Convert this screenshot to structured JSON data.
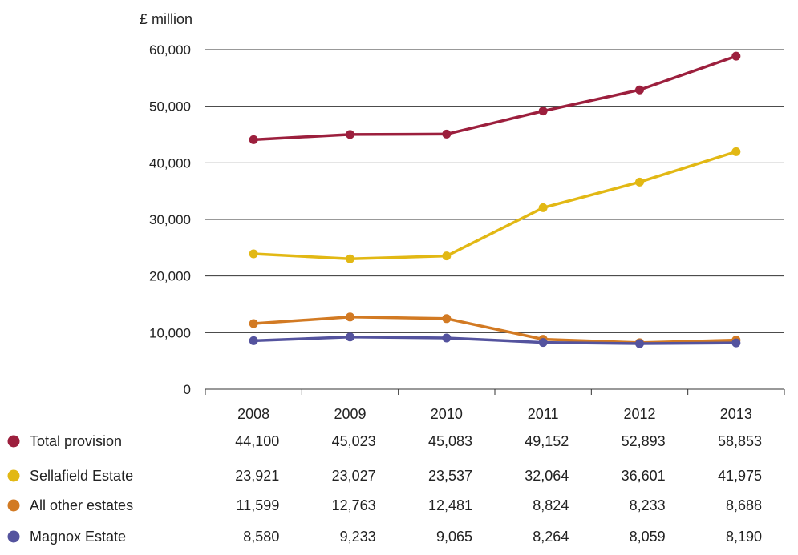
{
  "chart_data": {
    "type": "line",
    "unit_label": "£ million",
    "categories": [
      "2008",
      "2009",
      "2010",
      "2011",
      "2012",
      "2013"
    ],
    "ylim": [
      0,
      60000
    ],
    "yticks": [
      0,
      10000,
      20000,
      30000,
      40000,
      50000,
      60000
    ],
    "ytick_labels": [
      "0",
      "10,000",
      "20,000",
      "30,000",
      "40,000",
      "50,000",
      "60,000"
    ],
    "grid": "horizontal",
    "legend_placement": "bottom-left table",
    "series": [
      {
        "name": "Total provision",
        "color": "#9c1f3d",
        "values": [
          44100,
          45023,
          45083,
          49152,
          52893,
          58853
        ],
        "labels": [
          "44,100",
          "45,023",
          "45,083",
          "49,152",
          "52,893",
          "58,853"
        ]
      },
      {
        "name": "Sellafield Estate",
        "color": "#e2b814",
        "values": [
          23921,
          23027,
          23537,
          32064,
          36601,
          41975
        ],
        "labels": [
          "23,921",
          "23,027",
          "23,537",
          "32,064",
          "36,601",
          "41,975"
        ]
      },
      {
        "name": "All other estates",
        "color": "#d27a23",
        "values": [
          11599,
          12763,
          12481,
          8824,
          8233,
          8688
        ],
        "labels": [
          "11,599",
          "12,763",
          "12,481",
          "8,824",
          "8,233",
          "8,688"
        ]
      },
      {
        "name": "Magnox Estate",
        "color": "#54539e",
        "values": [
          8580,
          9233,
          9065,
          8264,
          8059,
          8190
        ],
        "labels": [
          "8,580",
          "9,233",
          "9,065",
          "8,264",
          "8,059",
          "8,190"
        ]
      }
    ]
  }
}
